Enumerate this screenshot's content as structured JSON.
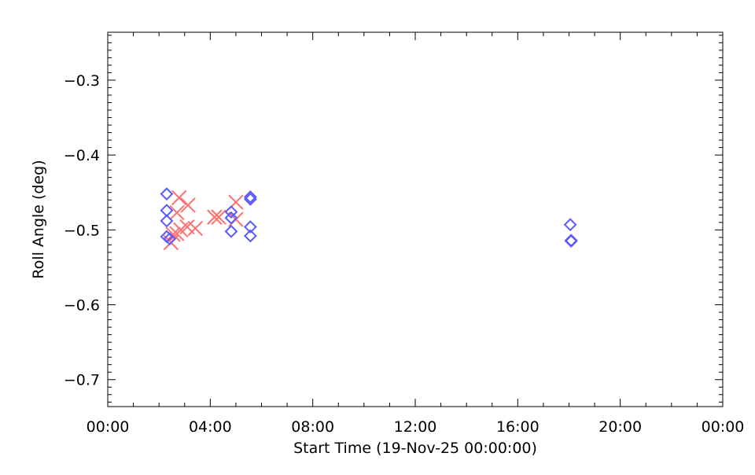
{
  "chart_data": {
    "type": "scatter",
    "title": "",
    "xlabel": "Start Time (19-Nov-25 00:00:00)",
    "ylabel": "Roll Angle (deg)",
    "xlim": [
      "00:00",
      "24:00"
    ],
    "ylim": [
      -0.736,
      -0.236
    ],
    "x_tick_labels": [
      "00:00",
      "04:00",
      "08:00",
      "12:00",
      "16:00",
      "20:00",
      "00:00"
    ],
    "y_tick_values": [
      -0.3,
      -0.4,
      -0.5,
      -0.6,
      -0.7
    ],
    "y_tick_labels": [
      "−0.3",
      "−0.4",
      "−0.5",
      "−0.6",
      "−0.7"
    ],
    "grid": false,
    "series": [
      {
        "marker": "diamond",
        "color": "#5a5aff",
        "points": [
          {
            "x": "02:18",
            "y": -0.452
          },
          {
            "x": "02:18",
            "y": -0.474
          },
          {
            "x": "02:18",
            "y": -0.488
          },
          {
            "x": "02:18",
            "y": -0.509
          },
          {
            "x": "02:25",
            "y": -0.512
          },
          {
            "x": "04:49",
            "y": -0.476
          },
          {
            "x": "04:49",
            "y": -0.484
          },
          {
            "x": "04:49",
            "y": -0.502
          },
          {
            "x": "05:34",
            "y": -0.456
          },
          {
            "x": "05:34",
            "y": -0.459
          },
          {
            "x": "05:34",
            "y": -0.496
          },
          {
            "x": "05:34",
            "y": -0.508
          },
          {
            "x": "18:03",
            "y": -0.493
          },
          {
            "x": "18:05",
            "y": -0.514
          },
          {
            "x": "18:05",
            "y": -0.515
          }
        ]
      },
      {
        "marker": "cross",
        "color": "#ff7070",
        "points": [
          {
            "x": "02:47",
            "y": -0.457
          },
          {
            "x": "03:08",
            "y": -0.467
          },
          {
            "x": "02:42",
            "y": -0.477
          },
          {
            "x": "03:06",
            "y": -0.496
          },
          {
            "x": "03:25",
            "y": -0.498
          },
          {
            "x": "02:51",
            "y": -0.5
          },
          {
            "x": "02:33",
            "y": -0.506
          },
          {
            "x": "02:28",
            "y": -0.517
          },
          {
            "x": "02:42",
            "y": -0.505
          },
          {
            "x": "04:10",
            "y": -0.483
          },
          {
            "x": "04:20",
            "y": -0.483
          },
          {
            "x": "05:00",
            "y": -0.463
          },
          {
            "x": "05:00",
            "y": -0.486
          }
        ]
      }
    ]
  }
}
